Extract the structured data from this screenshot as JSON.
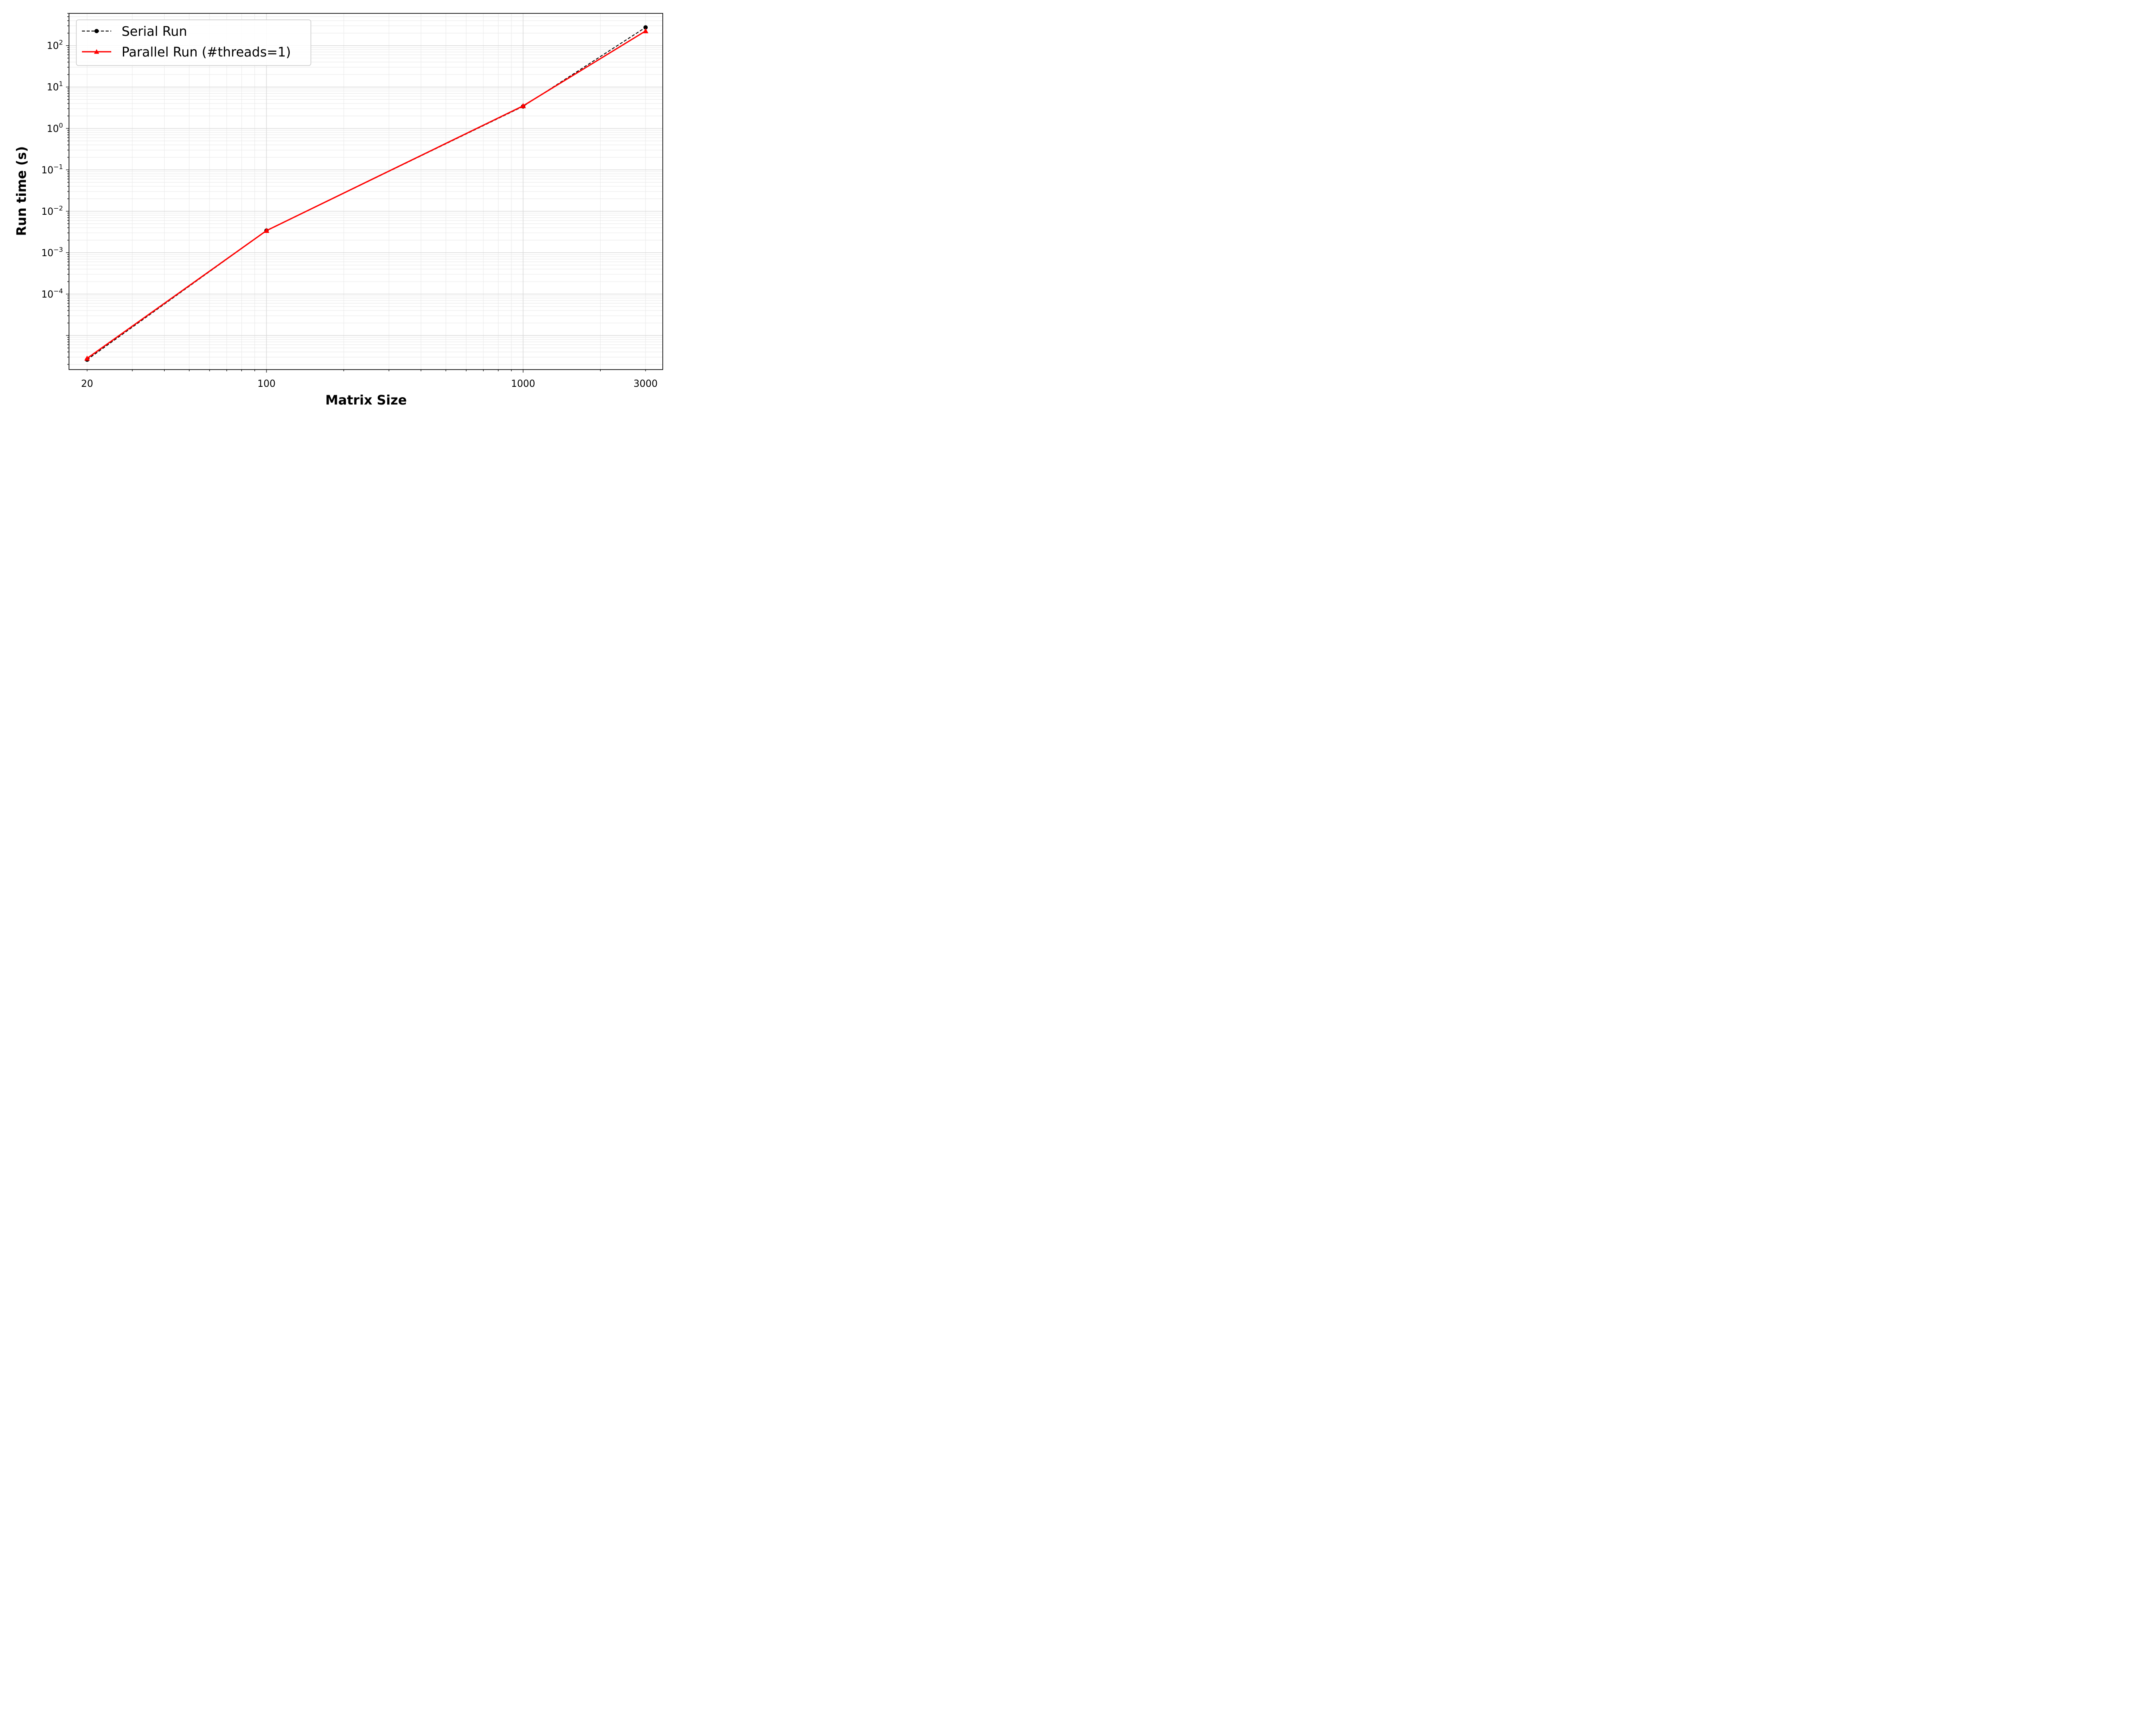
{
  "chart_data": {
    "type": "line",
    "title": "",
    "xlabel": "Matrix Size",
    "ylabel": "Run time (s)",
    "xscale": "log",
    "yscale": "log",
    "xlim": [
      17,
      3500
    ],
    "ylim": [
      1.5e-06,
      600
    ],
    "grid": true,
    "legend_position": "upper-left",
    "x_ticks": [
      20,
      100,
      1000,
      3000
    ],
    "x_tick_labels": [
      "20",
      "100",
      "1000",
      "3000"
    ],
    "y_ticks": [
      0.0001,
      0.001,
      0.01,
      0.1,
      1,
      10,
      100
    ],
    "y_tick_labels": [
      {
        "base": "10",
        "exp": "−4"
      },
      {
        "base": "10",
        "exp": "−3"
      },
      {
        "base": "10",
        "exp": "−2"
      },
      {
        "base": "10",
        "exp": "−1"
      },
      {
        "base": "10",
        "exp": "0"
      },
      {
        "base": "10",
        "exp": "1"
      },
      {
        "base": "10",
        "exp": "2"
      }
    ],
    "series": [
      {
        "name": "Serial Run",
        "color": "#000000",
        "line_style": "dashed",
        "marker": "circle",
        "x": [
          20,
          100,
          1000,
          3000
        ],
        "y": [
          2.6e-06,
          0.0034,
          3.4,
          275
        ]
      },
      {
        "name": "Parallel Run (#threads=1)",
        "color": "#ff0000",
        "line_style": "solid",
        "marker": "triangle",
        "x": [
          20,
          100,
          1000,
          3000
        ],
        "y": [
          2.8e-06,
          0.0034,
          3.5,
          225
        ]
      }
    ]
  }
}
